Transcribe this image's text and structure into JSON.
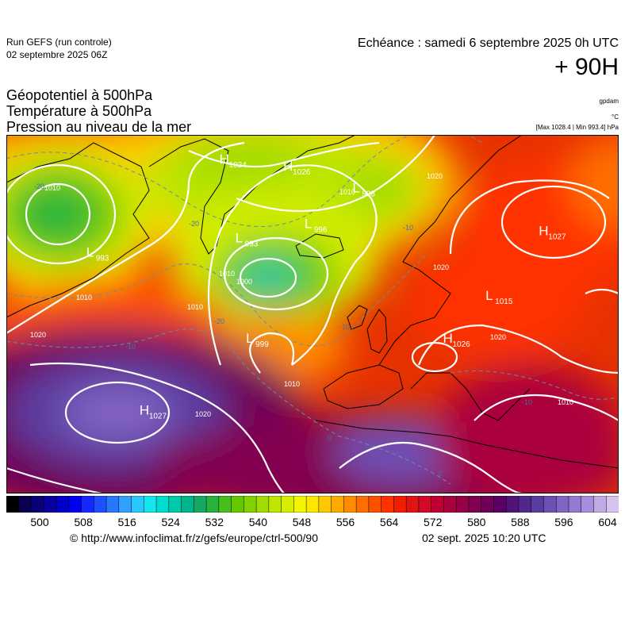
{
  "header": {
    "run_title": "Run GEFS (run controle)",
    "run_date": "02 septembre 2025 06Z",
    "echeance": "Echéance : samedi 6 septembre 2025 0h UTC",
    "lead_time": "+ 90H"
  },
  "parameters": {
    "line1": "Géopotentiel à 500hPa",
    "line2": "Température à 500hPa",
    "line3": "Pression au niveau de la mer"
  },
  "units": {
    "geopotential": "gpdam",
    "temperature": "°C",
    "pressure_extremes": "[Max 1028.4 | Min 993.4] hPa"
  },
  "pressure_centers": [
    {
      "type": "L",
      "value": "993",
      "lon": -55,
      "lat": 58
    },
    {
      "type": "H",
      "value": "1024",
      "lon": -30,
      "lat": 71
    },
    {
      "type": "H",
      "value": "1026",
      "lon": -18,
      "lat": 70
    },
    {
      "type": "L",
      "value": "998",
      "lon": -5,
      "lat": 67
    },
    {
      "type": "L",
      "value": "996",
      "lon": -14,
      "lat": 62
    },
    {
      "type": "L",
      "value": "993",
      "lon": -27,
      "lat": 60
    },
    {
      "type": "H",
      "value": "1027",
      "lon": 30,
      "lat": 61
    },
    {
      "type": "L",
      "value": "1015",
      "lon": 20,
      "lat": 52
    },
    {
      "type": "H",
      "value": "1026",
      "lon": 12,
      "lat": 46
    },
    {
      "type": "L",
      "value": "999",
      "lon": -25,
      "lat": 46
    },
    {
      "type": "H",
      "value": "1027",
      "lon": -45,
      "lat": 36
    }
  ],
  "isobar_labels": [
    "1010",
    "1010",
    "1010",
    "1010",
    "1020",
    "1000",
    "1010",
    "1020",
    "1010",
    "1020",
    "1020",
    "1010",
    "1020"
  ],
  "isotherm_labels": [
    "-20",
    "-20",
    "-20",
    "-10",
    "-10",
    "-10",
    "-10",
    "0",
    "0"
  ],
  "colorbar": {
    "tick_labels": [
      "500",
      "508",
      "516",
      "524",
      "532",
      "540",
      "548",
      "556",
      "564",
      "572",
      "580",
      "588",
      "596",
      "604"
    ],
    "colors": [
      "#000000",
      "#0a0050",
      "#0a0078",
      "#0a00a0",
      "#0000c8",
      "#0000f0",
      "#1428ff",
      "#1e50ff",
      "#2878ff",
      "#32a0ff",
      "#28c8ff",
      "#14e6f0",
      "#00dccd",
      "#00c8aa",
      "#00b48c",
      "#14aa64",
      "#28b43c",
      "#46be1e",
      "#64c800",
      "#82d200",
      "#a0dc00",
      "#bee600",
      "#d7ee00",
      "#f0f500",
      "#ffe600",
      "#ffc800",
      "#ffaa00",
      "#ff8c00",
      "#ff6e00",
      "#ff5000",
      "#ff3200",
      "#f01e00",
      "#e11414",
      "#d20a28",
      "#c00032",
      "#aa003c",
      "#960046",
      "#820050",
      "#6e005a",
      "#5a0064",
      "#501478",
      "#50288c",
      "#5a3ca0",
      "#6e50b4",
      "#8264c3",
      "#9678d2",
      "#aa8cdc",
      "#c3aae6",
      "#d7c3f0"
    ]
  },
  "footer": {
    "copyright": "© http://www.infoclimat.fr/z/gefs/europe/ctrl-500/90",
    "generated": "02 sept. 2025 10:20 UTC"
  }
}
